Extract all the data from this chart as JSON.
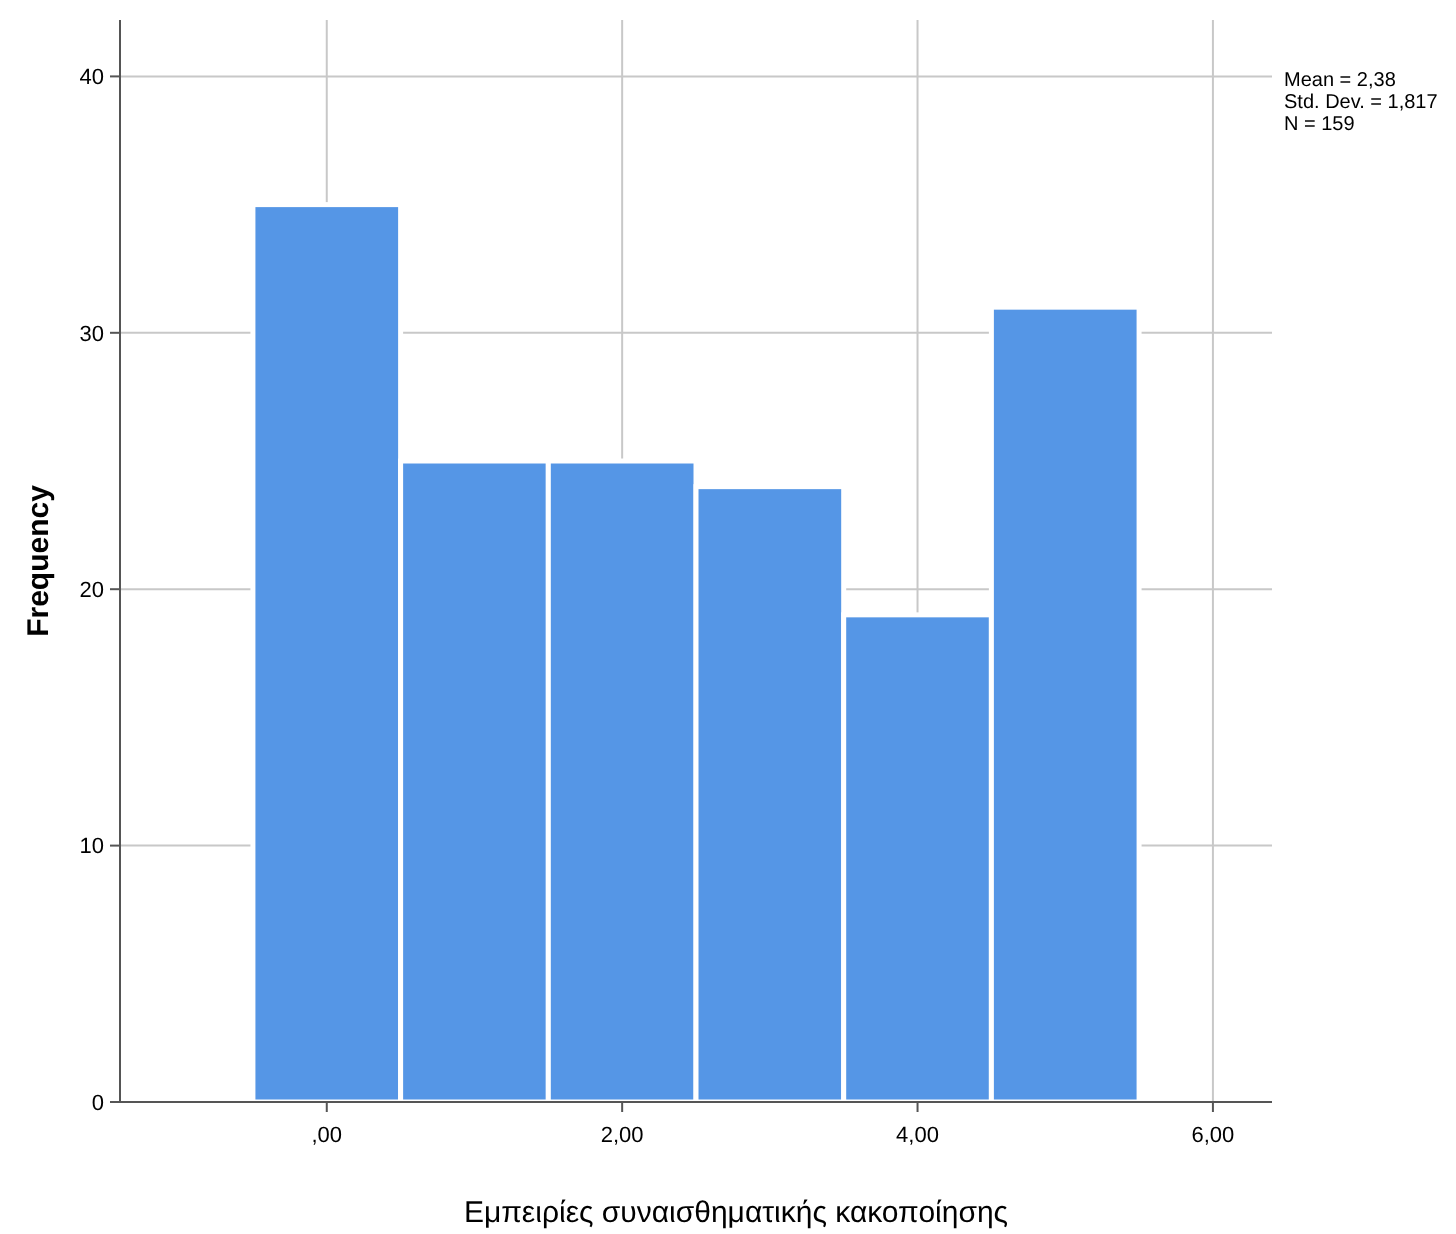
{
  "chart_data": {
    "type": "histogram",
    "xlabel": "Εμπειρίες  συναισθηματικής κακοποίησης",
    "ylabel": "Frequency",
    "bins": [
      -0.5,
      0.5,
      1.5,
      2.5,
      3.5,
      4.5,
      5.5
    ],
    "values": [
      35,
      25,
      25,
      24,
      19,
      31
    ],
    "color": "#5596e6",
    "xlim": [
      -1.4,
      6.4
    ],
    "xticks": [
      {
        "value": 0,
        "label": ",00"
      },
      {
        "value": 2,
        "label": "2,00"
      },
      {
        "value": 4,
        "label": "4,00"
      },
      {
        "value": 6,
        "label": "6,00"
      }
    ],
    "ylim": [
      0,
      42.2
    ],
    "yticks": [
      0,
      10,
      20,
      30,
      40
    ],
    "grid": true,
    "annotations": [
      "Mean = 2,38",
      "Std. Dev. = 1,817",
      "N = 159"
    ]
  }
}
